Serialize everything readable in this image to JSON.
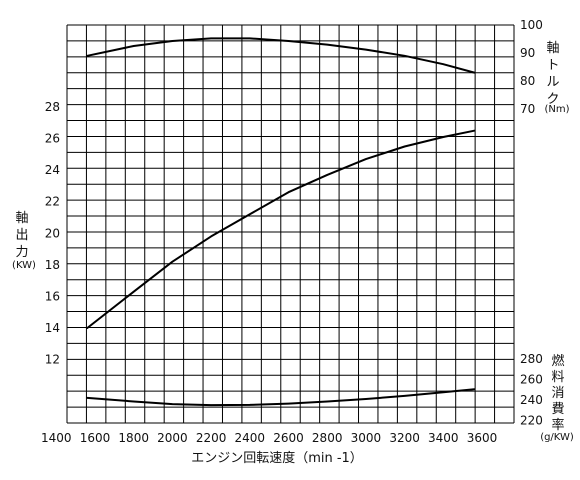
{
  "chart_data": {
    "type": "line",
    "grid": true,
    "x": {
      "label": "エンジン回転速度（min -1）",
      "min": 1400,
      "max": 3600,
      "ticks": [
        1400,
        1600,
        1800,
        2000,
        2200,
        2400,
        2600,
        2800,
        3000,
        3200,
        3400,
        3600
      ]
    },
    "axes": {
      "power": {
        "label": "軸出力",
        "unit": "(KW)",
        "side": "left",
        "ticks": [
          12,
          14,
          16,
          18,
          20,
          22,
          24,
          26,
          28
        ]
      },
      "torque": {
        "label": "軸トルク",
        "unit": "(Nm)",
        "side": "right",
        "ticks": [
          70,
          80,
          90,
          100
        ]
      },
      "consumption": {
        "label": "燃料消費率",
        "unit": "(g/KW)",
        "side": "right",
        "ticks": [
          220,
          240,
          260,
          280
        ]
      }
    },
    "series": [
      {
        "axis": "torque",
        "points": [
          [
            1560,
            89
          ],
          [
            1800,
            92.5
          ],
          [
            2000,
            94.3
          ],
          [
            2200,
            95.2
          ],
          [
            2400,
            95.2
          ],
          [
            2600,
            94.3
          ],
          [
            2800,
            93
          ],
          [
            3000,
            91.2
          ],
          [
            3200,
            89
          ],
          [
            3400,
            86
          ],
          [
            3560,
            83
          ]
        ]
      },
      {
        "axis": "power",
        "points": [
          [
            1560,
            14.0
          ],
          [
            1800,
            16.3
          ],
          [
            2000,
            18.2
          ],
          [
            2200,
            19.8
          ],
          [
            2400,
            21.2
          ],
          [
            2600,
            22.6
          ],
          [
            2800,
            23.7
          ],
          [
            3000,
            24.7
          ],
          [
            3200,
            25.5
          ],
          [
            3400,
            26.1
          ],
          [
            3560,
            26.5
          ]
        ]
      },
      {
        "axis": "consumption",
        "points": [
          [
            1560,
            242
          ],
          [
            1800,
            238.5
          ],
          [
            2000,
            236
          ],
          [
            2200,
            235
          ],
          [
            2400,
            235.2
          ],
          [
            2600,
            236.5
          ],
          [
            2800,
            238.5
          ],
          [
            3000,
            241
          ],
          [
            3200,
            244
          ],
          [
            3400,
            247.5
          ],
          [
            3560,
            250.5
          ]
        ]
      }
    ]
  }
}
